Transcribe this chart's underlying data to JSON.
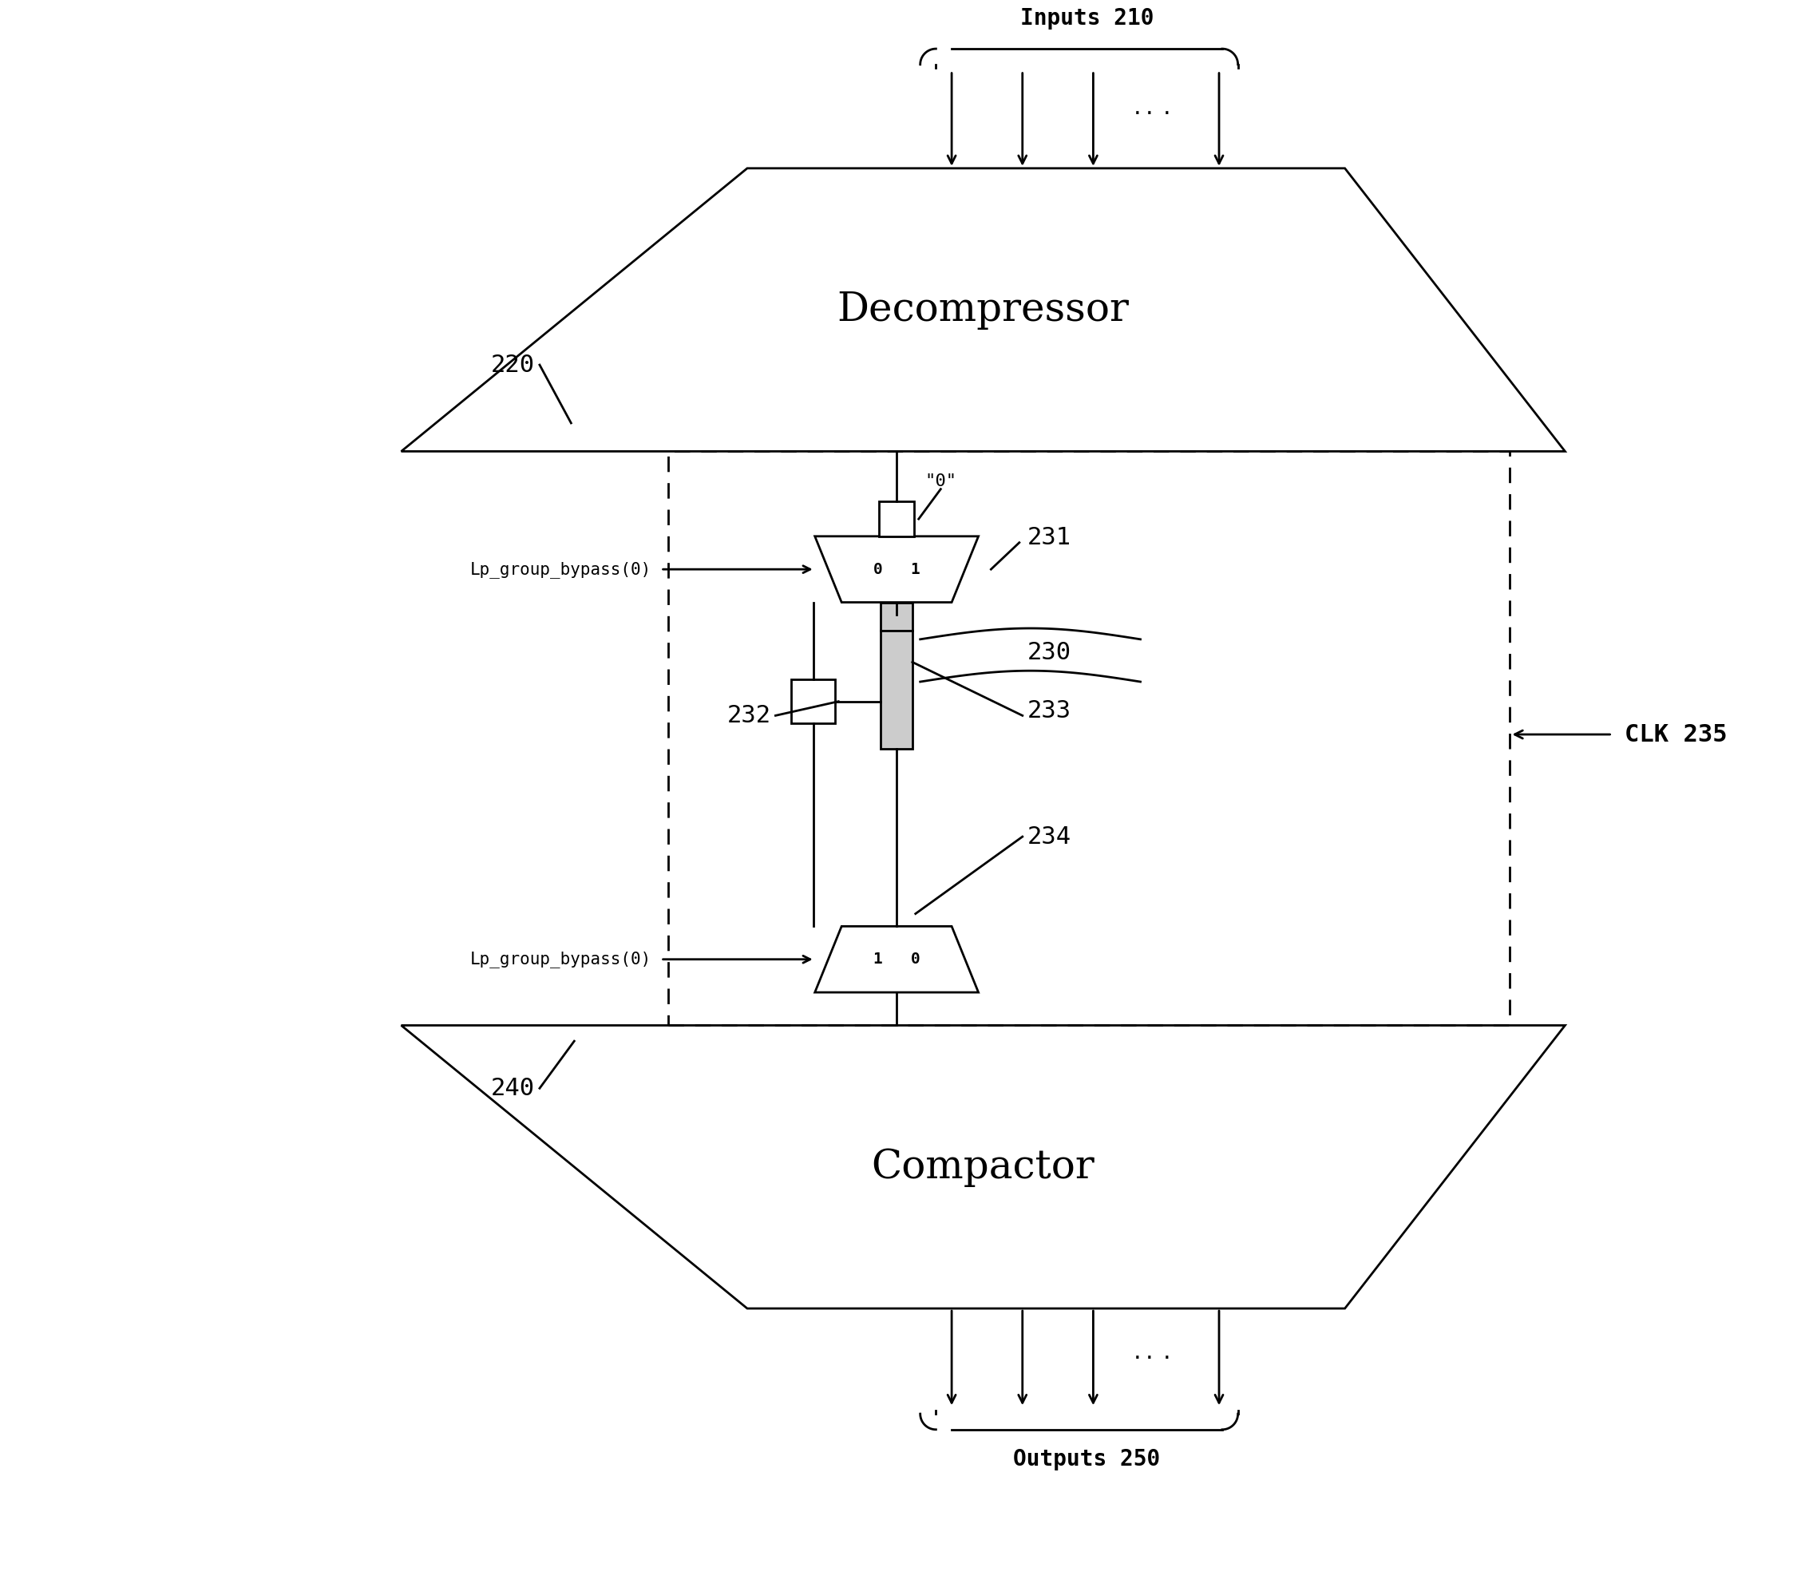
{
  "bg_color": "#ffffff",
  "line_color": "#000000",
  "fig_width": 22.66,
  "fig_height": 19.88,
  "decompressor_label": "Decompressor",
  "compactor_label": "Compactor",
  "inputs_label": "Inputs 210",
  "outputs_label": "Outputs 250",
  "clk_label": "CLK 235",
  "label_220": "220",
  "label_240": "240",
  "label_231": "231",
  "label_232": "232",
  "label_233": "233",
  "label_234": "234",
  "label_230": "230",
  "mux_top_label": "0   1",
  "mux_bot_label": "1   0",
  "zero_label": "\"0\"",
  "lp_bypass_top": "Lp_group_bypass(0)",
  "lp_bypass_bot": "Lp_group_bypass(0)"
}
